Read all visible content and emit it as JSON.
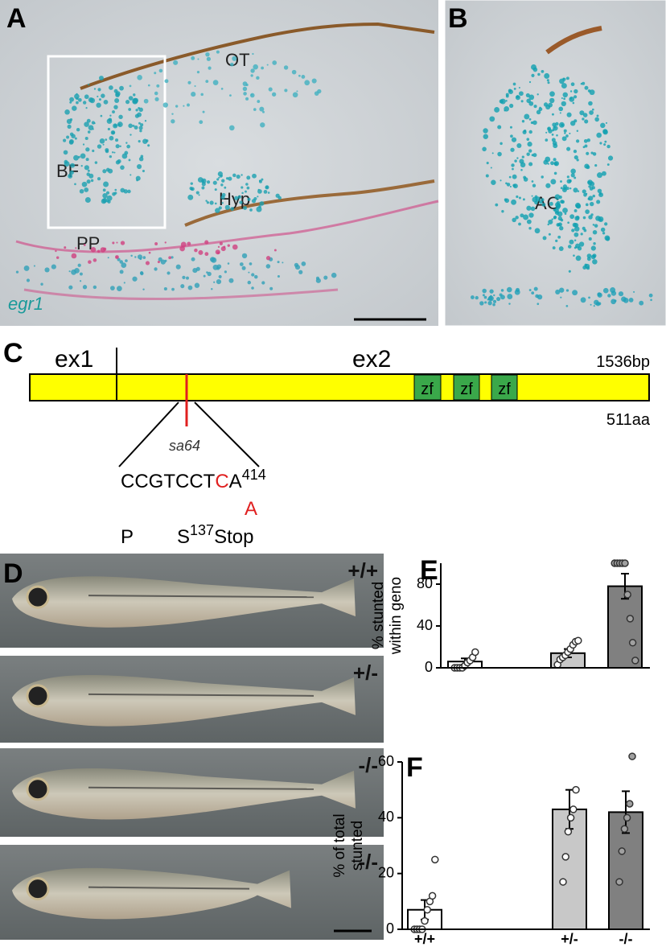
{
  "panels": {
    "A": {
      "label": "A",
      "regions": [
        "OT",
        "BF",
        "Hyp",
        "PP"
      ],
      "gene": "egr1"
    },
    "B": {
      "label": "B",
      "region": "AC"
    },
    "C": {
      "label": "C",
      "exons": [
        "ex1",
        "ex2"
      ],
      "length_bp": "1536bp",
      "length_aa": "511aa",
      "domains": [
        "zf",
        "zf",
        "zf"
      ],
      "allele": "sa64",
      "sequence": [
        "CCGTCCT",
        "C",
        "A"
      ],
      "position": "414",
      "mutation": "A",
      "protein": [
        "P",
        "S",
        "137",
        "Stop"
      ]
    },
    "D": {
      "label": "D",
      "genotypes": [
        "+/+",
        "+/-",
        "-/-",
        "-/-"
      ]
    }
  },
  "chart_data": [
    {
      "type": "bar",
      "label": "E",
      "ylabel": [
        "% stunted",
        "within geno"
      ],
      "categories": [
        null,
        null,
        null
      ],
      "values": [
        6,
        14,
        78
      ],
      "errors": [
        3,
        4,
        12
      ],
      "points": [
        [
          0,
          0,
          0,
          0,
          2,
          5,
          7,
          10,
          15
        ],
        [
          3,
          8,
          10,
          12,
          15,
          18,
          22,
          25,
          26
        ],
        [
          100,
          100,
          100,
          100,
          100,
          70,
          47,
          24,
          7
        ]
      ],
      "colors": [
        "#ffffff",
        "#c8c8c8",
        "#808080"
      ],
      "point_colors": [
        "#ffffff",
        "#ffffff",
        "#a0a0a0"
      ],
      "ylim": [
        0,
        100
      ],
      "yticks": [
        0,
        40,
        80
      ]
    },
    {
      "type": "bar",
      "label": "F",
      "ylabel": [
        "% of total",
        "stunted"
      ],
      "categories": [
        "+/+",
        "+/-",
        "-/-"
      ],
      "values": [
        7,
        43,
        42
      ],
      "errors": [
        3.5,
        7,
        7.5
      ],
      "points": [
        [
          0,
          0,
          0,
          0,
          3,
          7,
          10,
          12,
          25
        ],
        [
          17,
          26,
          35,
          40,
          43,
          50
        ],
        [
          17,
          28,
          36,
          40,
          45,
          62
        ]
      ],
      "colors": [
        "#ffffff",
        "#c8c8c8",
        "#808080"
      ],
      "point_colors": [
        "#ffffff",
        "#ffffff",
        "#a0a0a0"
      ],
      "ylim": [
        0,
        60
      ],
      "yticks": [
        0,
        20,
        40,
        60
      ]
    }
  ]
}
